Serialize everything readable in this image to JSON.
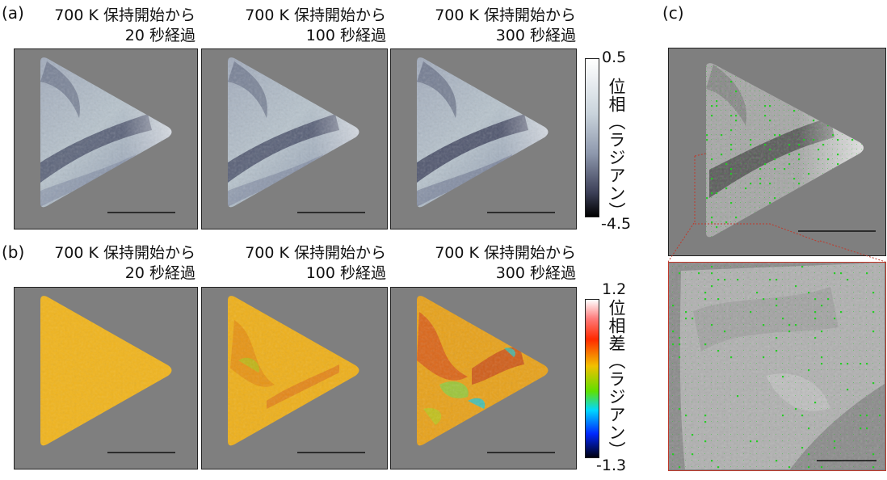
{
  "panels": {
    "a": {
      "label": "(a)",
      "titles": [
        {
          "line1": "700 K 保持開始から",
          "line2": "20 秒経過"
        },
        {
          "line1": "700 K 保持開始から",
          "line2": "100 秒経過"
        },
        {
          "line1": "700 K 保持開始から",
          "line2": "300 秒経過"
        }
      ],
      "colorbar": {
        "max": "0.5",
        "min": "-4.5",
        "label": "位相（ラジアン）"
      }
    },
    "b": {
      "label": "(b)",
      "titles": [
        {
          "line1": "700 K 保持開始から",
          "line2": "20 秒経過"
        },
        {
          "line1": "700 K 保持開始から",
          "line2": "100 秒経過"
        },
        {
          "line1": "700 K 保持開始から",
          "line2": "300 秒経過"
        }
      ],
      "colorbar": {
        "max": "1.2",
        "min": "-1.3",
        "label": "位相差（ラジアン）"
      }
    },
    "c": {
      "label": "(c)"
    }
  },
  "colors": {
    "background_gray": "#7f7f7f",
    "inset_border": "#c0392b",
    "vector_green": "#22cc22",
    "phase_map": [
      "#ffffff",
      "#c9d3db",
      "#8e98ad",
      "#4a4d68",
      "#000000"
    ],
    "diff_map": [
      "#ffffff",
      "#ff2a00",
      "#f2c000",
      "#00e26a",
      "#00d8ff",
      "#0028ff",
      "#000000"
    ]
  }
}
